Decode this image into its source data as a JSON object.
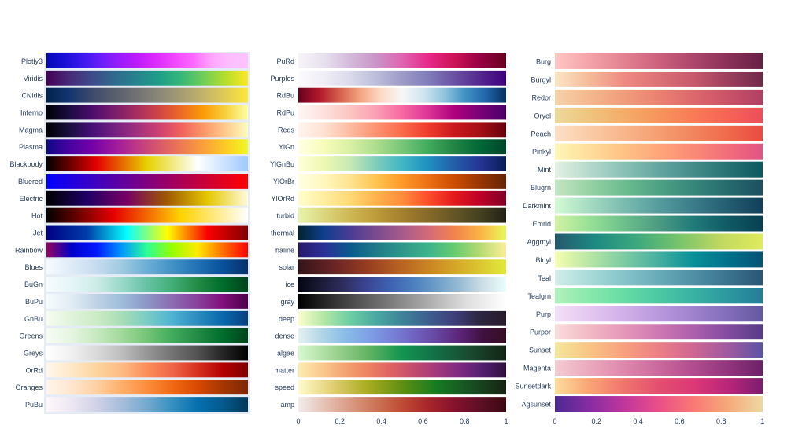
{
  "chart_data": [
    {
      "type": "heatmap",
      "panel": "left",
      "show_x_axis": false,
      "colorscales": [
        {
          "name": "Plotly3",
          "colors": [
            "#0508b8",
            "#1910d8",
            "#3c19f0",
            "#6b1cfb",
            "#981cfd",
            "#bf1cfd",
            "#dd2bfd",
            "#f246fe",
            "#fc67fd",
            "#fea5fd",
            "#febefe",
            "#fec3fe"
          ]
        },
        {
          "name": "Viridis",
          "colors": [
            "#440154",
            "#482878",
            "#3e4989",
            "#31688e",
            "#26828e",
            "#1f9e89",
            "#35b779",
            "#6ece58",
            "#b5de2b",
            "#fde725"
          ]
        },
        {
          "name": "Cividis",
          "colors": [
            "#00224e",
            "#123570",
            "#3b496c",
            "#575d6d",
            "#707173",
            "#8a8678",
            "#a59c74",
            "#c3b369",
            "#e1cc55",
            "#fee838"
          ]
        },
        {
          "name": "Inferno",
          "colors": [
            "#000004",
            "#1b0c41",
            "#4a0c6b",
            "#781c6d",
            "#a52c60",
            "#cf4446",
            "#ed6925",
            "#fb9b06",
            "#f7d13d",
            "#fcffa4"
          ]
        },
        {
          "name": "Magma",
          "colors": [
            "#000004",
            "#180f3d",
            "#440f76",
            "#721f81",
            "#9e2f7f",
            "#cd4071",
            "#f1605d",
            "#fd9668",
            "#feca8d",
            "#fcfdbf"
          ]
        },
        {
          "name": "Plasma",
          "colors": [
            "#0d0887",
            "#46039f",
            "#7201a8",
            "#9c179e",
            "#bd3786",
            "#d8576b",
            "#ed7953",
            "#fb9f3a",
            "#fdca26",
            "#f0f921"
          ]
        },
        {
          "name": "Blackbody",
          "colors": [
            "#000000",
            "#e60000",
            "#e6d200",
            "#ffffff",
            "#a0c8ff"
          ]
        },
        {
          "name": "Bluered",
          "colors": [
            "#0000ff",
            "#ff0000"
          ]
        },
        {
          "name": "Electric",
          "colors": [
            "#000000",
            "#1e0064",
            "#780064",
            "#a05a00",
            "#e6c800",
            "#fffadc"
          ]
        },
        {
          "name": "Hot",
          "colors": [
            "#000000",
            "#e60000",
            "#ffd200",
            "#ffffff"
          ]
        },
        {
          "name": "Jet",
          "colors": [
            "#000083",
            "#003caa",
            "#05ffff",
            "#ffff00",
            "#fa0000",
            "#800000"
          ]
        },
        {
          "name": "Rainbow",
          "colors": [
            "#96005a",
            "#0000c8",
            "#0019ff",
            "#0098ff",
            "#2cff96",
            "#97ff00",
            "#ffea00",
            "#ff6f00",
            "#ff0000"
          ]
        },
        {
          "name": "Blues",
          "colors": [
            "#f7fbff",
            "#deebf7",
            "#c6dbef",
            "#9ecae1",
            "#6baed6",
            "#4292c6",
            "#2171b5",
            "#08519c",
            "#08306b"
          ]
        },
        {
          "name": "BuGn",
          "colors": [
            "#f7fcfd",
            "#e5f5f9",
            "#ccece6",
            "#99d8c9",
            "#66c2a4",
            "#41ae76",
            "#238b45",
            "#006d2c",
            "#00441b"
          ]
        },
        {
          "name": "BuPu",
          "colors": [
            "#f7fcfd",
            "#e0ecf4",
            "#bfd3e6",
            "#9ebcda",
            "#8c96c6",
            "#8c6bb1",
            "#88419d",
            "#810f7c",
            "#4d004b"
          ]
        },
        {
          "name": "GnBu",
          "colors": [
            "#f7fcf0",
            "#e0f3db",
            "#ccebc5",
            "#a8ddb5",
            "#7bccc4",
            "#4eb3d3",
            "#2b8cbe",
            "#0868ac",
            "#084081"
          ]
        },
        {
          "name": "Greens",
          "colors": [
            "#f7fcf5",
            "#e5f5e0",
            "#c7e9c0",
            "#a1d99b",
            "#74c476",
            "#41ab5d",
            "#238b45",
            "#006d2c",
            "#00441b"
          ]
        },
        {
          "name": "Greys",
          "colors": [
            "#ffffff",
            "#f0f0f0",
            "#d9d9d9",
            "#bdbdbd",
            "#969696",
            "#737373",
            "#525252",
            "#252525",
            "#000000"
          ]
        },
        {
          "name": "OrRd",
          "colors": [
            "#fff7ec",
            "#fee8c8",
            "#fdd49e",
            "#fdbb84",
            "#fc8d59",
            "#ef6548",
            "#d7301f",
            "#b30000",
            "#7f0000"
          ]
        },
        {
          "name": "Oranges",
          "colors": [
            "#fff5eb",
            "#fee6ce",
            "#fdd0a2",
            "#fdae6b",
            "#fd8d3c",
            "#f16913",
            "#d94801",
            "#a63603",
            "#7f2704"
          ]
        },
        {
          "name": "PuBu",
          "colors": [
            "#fff7fb",
            "#ece7f2",
            "#d0d1e6",
            "#a6bddb",
            "#74a9cf",
            "#3690c0",
            "#0570b0",
            "#045a8d",
            "#023858"
          ]
        }
      ]
    },
    {
      "type": "heatmap",
      "panel": "middle",
      "show_x_axis": true,
      "xlim": [
        0,
        1
      ],
      "xticks": [
        "0",
        "0.2",
        "0.4",
        "0.6",
        "0.8",
        "1"
      ],
      "colorscales": [
        {
          "name": "PuRd",
          "colors": [
            "#f7f4f9",
            "#e7e1ef",
            "#d4b9da",
            "#c994c7",
            "#df65b0",
            "#e7298a",
            "#ce1256",
            "#980043",
            "#67001f"
          ]
        },
        {
          "name": "Purples",
          "colors": [
            "#fcfbfd",
            "#efedf5",
            "#dadaeb",
            "#bcbddc",
            "#9e9ac8",
            "#807dba",
            "#6a51a3",
            "#54278f",
            "#3f007d"
          ]
        },
        {
          "name": "RdBu",
          "colors": [
            "#67001f",
            "#b2182b",
            "#d6604d",
            "#f4a582",
            "#fddbc7",
            "#f7f7f7",
            "#d1e5f0",
            "#92c5de",
            "#4393c3",
            "#2166ac",
            "#053061"
          ]
        },
        {
          "name": "RdPu",
          "colors": [
            "#fff7f3",
            "#fde0dd",
            "#fcc5c0",
            "#fa9fb5",
            "#f768a1",
            "#dd3497",
            "#ae017e",
            "#7a0177",
            "#49006a"
          ]
        },
        {
          "name": "Reds",
          "colors": [
            "#fff5f0",
            "#fee0d2",
            "#fcbba1",
            "#fc9272",
            "#fb6a4a",
            "#ef3b2c",
            "#cb181d",
            "#a50f15",
            "#67000d"
          ]
        },
        {
          "name": "YlGn",
          "colors": [
            "#ffffe5",
            "#f7fcb9",
            "#d9f0a3",
            "#addd8e",
            "#78c679",
            "#41ab5d",
            "#238443",
            "#006837",
            "#004529"
          ]
        },
        {
          "name": "YlGnBu",
          "colors": [
            "#ffffd9",
            "#edf8b1",
            "#c7e9b4",
            "#7fcdbb",
            "#41b6c4",
            "#1d91c0",
            "#225ea8",
            "#253494",
            "#081d58"
          ]
        },
        {
          "name": "YlOrBr",
          "colors": [
            "#ffffe5",
            "#fff7bc",
            "#fee391",
            "#fec44f",
            "#fe9929",
            "#ec7014",
            "#cc4c02",
            "#993404",
            "#662506"
          ]
        },
        {
          "name": "YlOrRd",
          "colors": [
            "#ffffcc",
            "#ffeda0",
            "#fed976",
            "#feb24c",
            "#fd8d3c",
            "#fc4e2a",
            "#e31a1c",
            "#bd0026",
            "#800026"
          ]
        },
        {
          "name": "turbid",
          "colors": [
            "#e8f5ab",
            "#dcd982",
            "#d1be5c",
            "#c3a541",
            "#b08c31",
            "#97762b",
            "#7c6328",
            "#5d5125",
            "#403e1f",
            "#232114"
          ]
        },
        {
          "name": "thermal",
          "colors": [
            "#032333",
            "#0f3f8c",
            "#4a3c95",
            "#7a4b8e",
            "#a65b8c",
            "#d26b78",
            "#f2824e",
            "#fbb346",
            "#e8fa5b"
          ]
        },
        {
          "name": "haline",
          "colors": [
            "#29186b",
            "#2a3097",
            "#0a5b8d",
            "#1f7a89",
            "#2f968a",
            "#3eb38b",
            "#66cb70",
            "#b5db73",
            "#fdef9a"
          ]
        },
        {
          "name": "solar",
          "colors": [
            "#331418",
            "#682325",
            "#973d21",
            "#b96422",
            "#cf8f23",
            "#d9bb2d",
            "#e1e93a"
          ]
        },
        {
          "name": "ice",
          "colors": [
            "#040613",
            "#1d1b38",
            "#2f2f61",
            "#3b4694",
            "#3f62b3",
            "#4c80bf",
            "#6d9ec9",
            "#98bcd5",
            "#cddfe6",
            "#eafdfd"
          ]
        },
        {
          "name": "gray",
          "colors": [
            "#000000",
            "#3b3b3b",
            "#707070",
            "#a5a5a5",
            "#dcdcdc",
            "#ffffff"
          ]
        },
        {
          "name": "deep",
          "colors": [
            "#fdfecc",
            "#b2e6a5",
            "#6bcea3",
            "#4aa8a2",
            "#3e8399",
            "#3d5f8e",
            "#3f3e7b",
            "#2d2640",
            "#281a2c"
          ]
        },
        {
          "name": "dense",
          "colors": [
            "#e6f1f1",
            "#b3d6e7",
            "#8abde7",
            "#7fa2e6",
            "#7783d8",
            "#7064c1",
            "#6645a0",
            "#5b2479",
            "#3f1040",
            "#360e24"
          ]
        },
        {
          "name": "algae",
          "colors": [
            "#d7f9d0",
            "#a2d595",
            "#64b463",
            "#129450",
            "#126e45",
            "#1a482f",
            "#122414"
          ]
        },
        {
          "name": "matter",
          "colors": [
            "#fdedb0",
            "#faca8f",
            "#f4a471",
            "#ee8361",
            "#de6262",
            "#c34a6d",
            "#a2387b",
            "#7d2981",
            "#521f6e",
            "#2f0f3d"
          ]
        },
        {
          "name": "speed",
          "colors": [
            "#fffdcd",
            "#e1cd73",
            "#aaac20",
            "#5f8f12",
            "#177a22",
            "#174e22",
            "#172313"
          ]
        },
        {
          "name": "amp",
          "colors": [
            "#f1ecec",
            "#e6c2b5",
            "#d99a83",
            "#cd7356",
            "#bf4b34",
            "#a8262a",
            "#87112c",
            "#5e0f26",
            "#3c0911"
          ]
        }
      ]
    },
    {
      "type": "heatmap",
      "panel": "right",
      "show_x_axis": true,
      "xlim": [
        0,
        1
      ],
      "xticks": [
        "0",
        "0.2",
        "0.4",
        "0.6",
        "0.8",
        "1"
      ],
      "colorscales": [
        {
          "name": "Burg",
          "colors": [
            "#ffc6c4",
            "#f4a3a8",
            "#e38191",
            "#cc607d",
            "#ad466c",
            "#8b3058",
            "#672044"
          ]
        },
        {
          "name": "Burgyl",
          "colors": [
            "#fbe6c5",
            "#f5ba98",
            "#ee8a82",
            "#dc7176",
            "#c8586c",
            "#9c3f5d",
            "#70284a"
          ]
        },
        {
          "name": "Redor",
          "colors": [
            "#f6d2a9",
            "#f5b78e",
            "#f19c7c",
            "#ea8171",
            "#dd686c",
            "#ca5268",
            "#b13f64"
          ]
        },
        {
          "name": "Oryel",
          "colors": [
            "#ecda9a",
            "#efc47e",
            "#f3ad6a",
            "#f7945d",
            "#f97b57",
            "#f66356",
            "#ee4d5a"
          ]
        },
        {
          "name": "Peach",
          "colors": [
            "#fde0c5",
            "#facba6",
            "#f8b58b",
            "#f59e72",
            "#f2855d",
            "#ef6a4c",
            "#eb4a40"
          ]
        },
        {
          "name": "Pinkyl",
          "colors": [
            "#fef6b5",
            "#ffdd9a",
            "#ffc285",
            "#ffa679",
            "#fa8a76",
            "#f16d7a",
            "#e15383"
          ]
        },
        {
          "name": "Mint",
          "colors": [
            "#e4f1e1",
            "#b4d9cc",
            "#89c0b6",
            "#63a6a0",
            "#448c8a",
            "#287274",
            "#0d585f"
          ]
        },
        {
          "name": "Blugrn",
          "colors": [
            "#c4e6c3",
            "#96d2a4",
            "#6dbc90",
            "#4da284",
            "#36877a",
            "#266b6e",
            "#1d4f60"
          ]
        },
        {
          "name": "Darkmint",
          "colors": [
            "#d2fbd4",
            "#a5dbc2",
            "#7bbcb0",
            "#559c9e",
            "#3a7c89",
            "#235d72",
            "#123f5a"
          ]
        },
        {
          "name": "Emrld",
          "colors": [
            "#d3f2a3",
            "#97e196",
            "#6cc08b",
            "#4c9b82",
            "#217a79",
            "#105965",
            "#074050"
          ]
        },
        {
          "name": "Aggrnyl",
          "colors": [
            "#24586e",
            "#1e8b82",
            "#3ea97e",
            "#78c46b",
            "#c1d860",
            "#e0eb5c"
          ]
        },
        {
          "name": "Bluyl",
          "colors": [
            "#f7feae",
            "#b7e6a5",
            "#7ccba2",
            "#46aea0",
            "#089099",
            "#00718b",
            "#045275"
          ]
        },
        {
          "name": "Teal",
          "colors": [
            "#d1eeea",
            "#a8dbd9",
            "#85c4c9",
            "#68abb8",
            "#4f90a6",
            "#3b738f",
            "#2a5674"
          ]
        },
        {
          "name": "Tealgrn",
          "colors": [
            "#b0f2bc",
            "#89e8ac",
            "#67dba5",
            "#4cc8a3",
            "#38b2a3",
            "#2c98a0",
            "#257d98"
          ]
        },
        {
          "name": "Purp",
          "colors": [
            "#f3e0f7",
            "#e4c7f1",
            "#d1afe8",
            "#b998dd",
            "#9f82ce",
            "#826dba",
            "#63589f"
          ]
        },
        {
          "name": "Purpor",
          "colors": [
            "#f9ddda",
            "#f2b9c4",
            "#e597b9",
            "#ce78b3",
            "#ad5fad",
            "#834ba0",
            "#573b88"
          ]
        },
        {
          "name": "Sunset",
          "colors": [
            "#f3e79b",
            "#fac484",
            "#f8a07e",
            "#eb7f86",
            "#ce6693",
            "#a059a0",
            "#5c53a5"
          ]
        },
        {
          "name": "Magenta",
          "colors": [
            "#f3cbd3",
            "#eaa9bd",
            "#dd88ac",
            "#ca699d",
            "#b14d8e",
            "#91357d",
            "#6c2167"
          ]
        },
        {
          "name": "Sunsetdark",
          "colors": [
            "#fcde9c",
            "#faa476",
            "#f0746e",
            "#e34f6f",
            "#dc3977",
            "#b9257a",
            "#7c1d6f"
          ]
        },
        {
          "name": "Agsunset",
          "colors": [
            "#4b2991",
            "#872ca2",
            "#c0369d",
            "#ea4f88",
            "#fa7876",
            "#f6a97a",
            "#edd9a3"
          ]
        }
      ]
    }
  ]
}
